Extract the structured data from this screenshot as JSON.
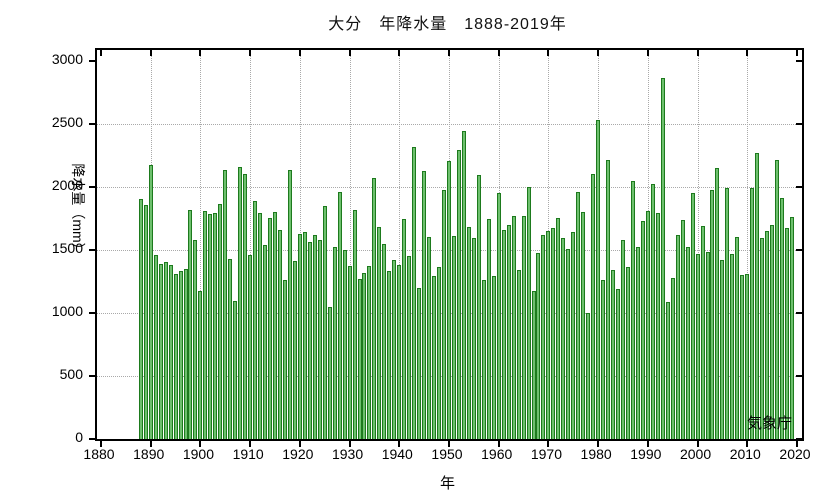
{
  "title": "大分　年降水量　1888-2019年",
  "y_axis": {
    "label": "降水量（mm）",
    "ticks": [
      0,
      500,
      1000,
      1500,
      2000,
      2500,
      3000
    ]
  },
  "x_axis": {
    "label": "年",
    "ticks": [
      1880,
      1890,
      1900,
      1910,
      1920,
      1930,
      1940,
      1950,
      1960,
      1970,
      1980,
      1990,
      2000,
      2010,
      2020
    ]
  },
  "watermark": "気象庁",
  "colors": {
    "bar_fill": "#6ec06e",
    "bar_border": "#1d7a1d",
    "grid": "#a9a9a9",
    "frame": "#000000",
    "background": "#ffffff"
  },
  "chart_data": {
    "type": "bar",
    "title": "大分　年降水量　1888-2019年",
    "xlabel": "年",
    "ylabel": "降水量（mm）",
    "ylim": [
      0,
      3000
    ],
    "xlim": [
      1879,
      2021
    ],
    "grid": true,
    "legend": "none",
    "start_year": 1888,
    "end_year": 2019,
    "x_tick_labels": [
      1880,
      1890,
      1900,
      1910,
      1920,
      1930,
      1940,
      1950,
      1960,
      1970,
      1980,
      1990,
      2000,
      2010,
      2020
    ],
    "y_tick_labels": [
      0,
      500,
      1000,
      1500,
      2000,
      2500,
      3000
    ],
    "series_name": "年降水量 (mm)",
    "values": [
      1900,
      1855,
      2175,
      1460,
      1385,
      1400,
      1380,
      1310,
      1335,
      1350,
      1815,
      1580,
      1170,
      1810,
      1780,
      1795,
      1860,
      2130,
      1430,
      1095,
      2155,
      2100,
      1455,
      1890,
      1790,
      1540,
      1755,
      1800,
      1660,
      1260,
      2130,
      1410,
      1625,
      1645,
      1560,
      1615,
      1580,
      1850,
      1048,
      1524,
      1960,
      1495,
      1375,
      1815,
      1272,
      1320,
      1373,
      2068,
      1680,
      1550,
      1330,
      1420,
      1378,
      1745,
      1450,
      2318,
      1197,
      2122,
      1600,
      1292,
      1365,
      1975,
      2206,
      1607,
      2295,
      2445,
      1683,
      1590,
      2093,
      1260,
      1744,
      1290,
      1950,
      1655,
      1700,
      1770,
      1340,
      1770,
      2000,
      1170,
      1475,
      1616,
      1650,
      1670,
      1750,
      1590,
      1505,
      1640,
      1955,
      1800,
      1000,
      2100,
      2528,
      1260,
      2210,
      1339,
      1193,
      1577,
      1365,
      2045,
      1520,
      1730,
      1810,
      2020,
      1790,
      2860,
      1090,
      1280,
      1620,
      1740,
      1520,
      1950,
      1463,
      1688,
      1484,
      1974,
      2150,
      1416,
      1990,
      1463,
      1601,
      1300,
      1312,
      1987,
      2270,
      1590,
      1648,
      1700,
      2210,
      1907,
      1675,
      1762
    ]
  }
}
